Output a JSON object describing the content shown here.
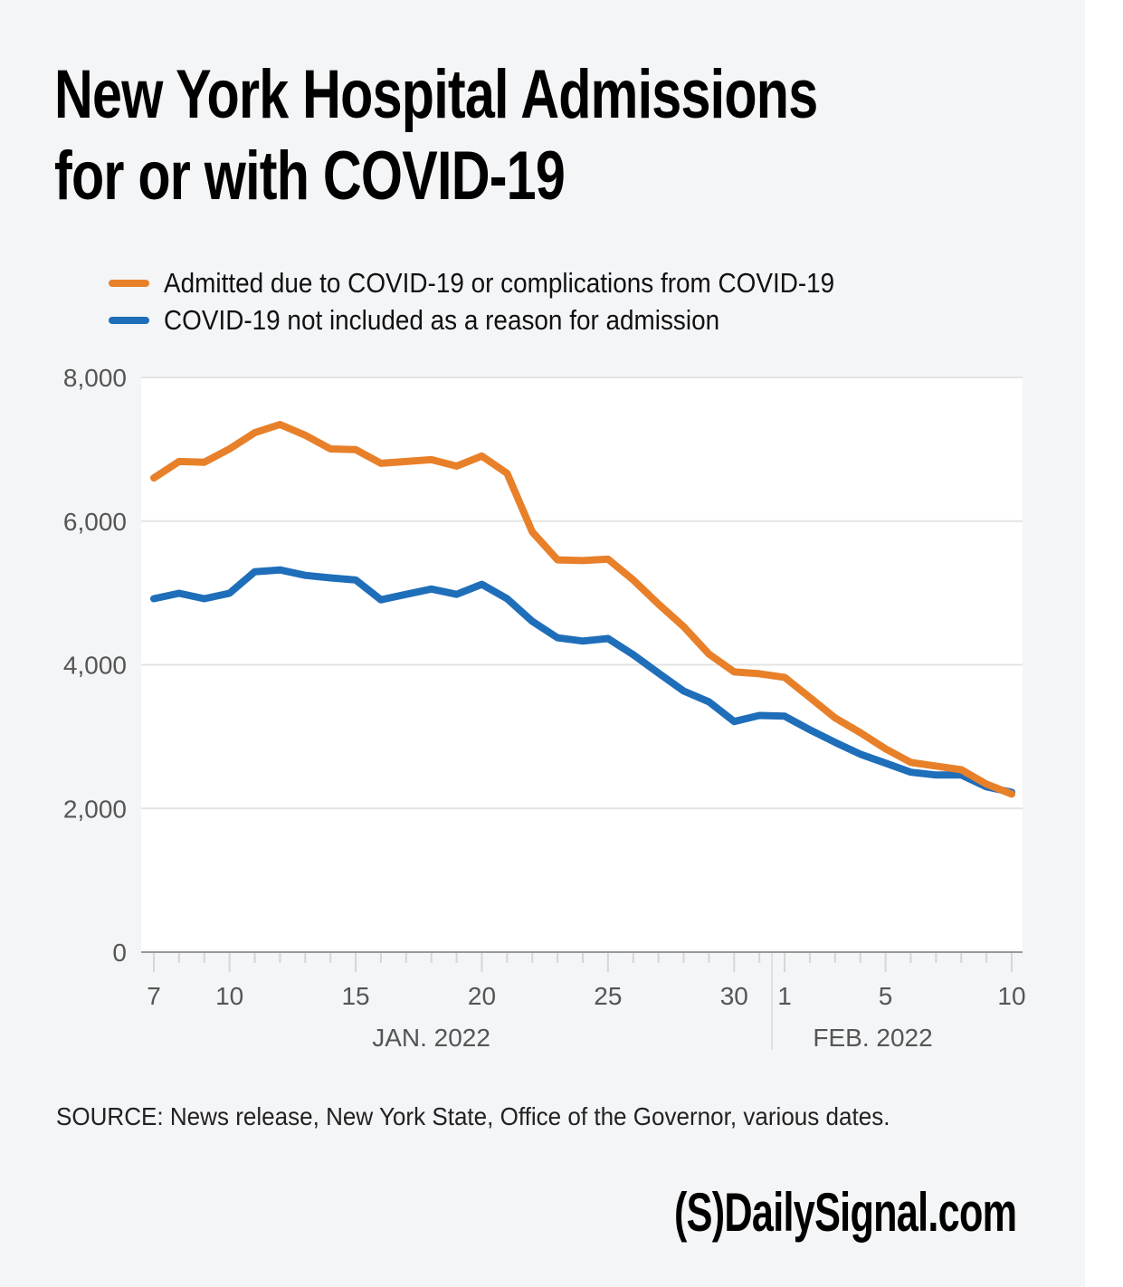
{
  "title_line1": "New York Hospital Admissions",
  "title_line2": "for or with COVID-19",
  "source": "SOURCE: News release, New York State, Office of the Governor, various dates.",
  "logo": "(S)DailySignal.com",
  "colors": {
    "orange": "#e8802a",
    "blue": "#1f6eb9",
    "background": "#f4f5f7",
    "plot_background": "#ffffff",
    "grid": "#e4e4e4",
    "axis": "#999999"
  },
  "chart_data": {
    "type": "line",
    "title": "New York Hospital Admissions for or with COVID-19",
    "xlabel": "",
    "ylabel": "",
    "ylim": [
      0,
      8000
    ],
    "yticks": [
      0,
      2000,
      4000,
      6000,
      8000
    ],
    "ytick_labels": [
      "0",
      "2,000",
      "4,000",
      "6,000",
      "8,000"
    ],
    "grid": true,
    "legend_position": "top-left",
    "x": [
      "Jan 7",
      "Jan 8",
      "Jan 9",
      "Jan 10",
      "Jan 11",
      "Jan 12",
      "Jan 13",
      "Jan 14",
      "Jan 15",
      "Jan 16",
      "Jan 17",
      "Jan 18",
      "Jan 19",
      "Jan 20",
      "Jan 21",
      "Jan 22",
      "Jan 23",
      "Jan 24",
      "Jan 25",
      "Jan 26",
      "Jan 27",
      "Jan 28",
      "Jan 29",
      "Jan 30",
      "Jan 31",
      "Feb 1",
      "Feb 2",
      "Feb 3",
      "Feb 4",
      "Feb 5",
      "Feb 6",
      "Feb 7",
      "Feb 8",
      "Feb 9",
      "Feb 10"
    ],
    "xtick_labels": [
      {
        "index": 0,
        "label": "7"
      },
      {
        "index": 3,
        "label": "10"
      },
      {
        "index": 8,
        "label": "15"
      },
      {
        "index": 13,
        "label": "20"
      },
      {
        "index": 18,
        "label": "25"
      },
      {
        "index": 23,
        "label": "30"
      },
      {
        "index": 25,
        "label": "1"
      },
      {
        "index": 29,
        "label": "5"
      },
      {
        "index": 34,
        "label": "10"
      }
    ],
    "month_labels": [
      {
        "label": "JAN. 2022",
        "center_index": 12
      },
      {
        "label": "FEB. 2022",
        "center_index": 29.5
      }
    ],
    "month_divider_index": 24.5,
    "series": [
      {
        "name": "Admitted due to COVID-19 or complications from COVID-19",
        "color": "#e8802a",
        "values": [
          6600,
          6830,
          6820,
          7005,
          7230,
          7345,
          7195,
          7005,
          6995,
          6805,
          6830,
          6855,
          6765,
          6905,
          6665,
          5850,
          5460,
          5450,
          5470,
          5180,
          4845,
          4530,
          4150,
          3900,
          3875,
          3825,
          3545,
          3260,
          3055,
          2830,
          2640,
          2590,
          2540,
          2340,
          2200
        ]
      },
      {
        "name": "COVID-19 not included as a reason for admission",
        "color": "#1f6eb9",
        "values": [
          4920,
          4995,
          4920,
          4995,
          5295,
          5320,
          5245,
          5210,
          5180,
          4905,
          4980,
          5055,
          4980,
          5120,
          4920,
          4605,
          4375,
          4330,
          4365,
          4140,
          3885,
          3635,
          3485,
          3210,
          3295,
          3285,
          3095,
          2920,
          2755,
          2630,
          2505,
          2465,
          2465,
          2300,
          2225
        ]
      }
    ]
  }
}
